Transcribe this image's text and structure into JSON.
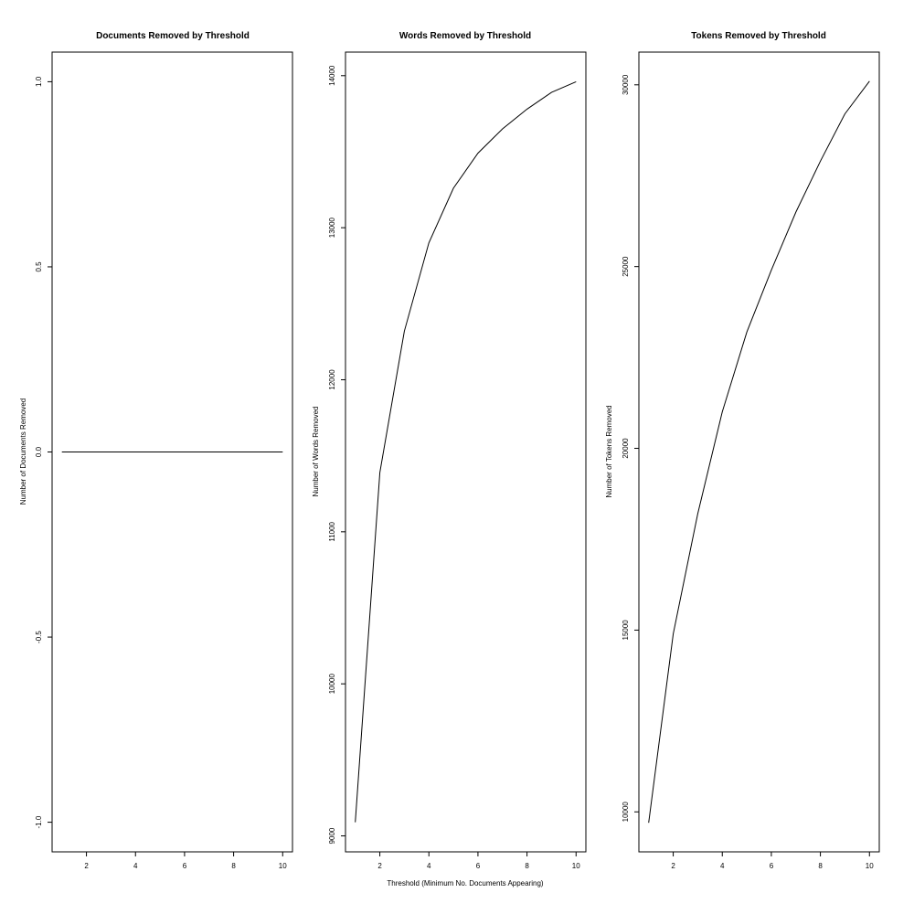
{
  "chart_data": [
    {
      "type": "line",
      "title": "Documents Removed by Threshold",
      "xlabel": "",
      "ylabel": "Number of Documents Removed",
      "x": [
        1,
        2,
        3,
        4,
        5,
        6,
        7,
        8,
        9,
        10
      ],
      "y": [
        0,
        0,
        0,
        0,
        0,
        0,
        0,
        0,
        0,
        0
      ],
      "xlim": [
        0.6,
        10.4
      ],
      "ylim": [
        -1.08,
        1.08
      ],
      "xticks": [
        2,
        4,
        6,
        8,
        10
      ],
      "yticks": [
        -1.0,
        -0.5,
        0.0,
        0.5,
        1.0
      ],
      "ytick_labels": [
        "-1.0",
        "-0.5",
        "0.0",
        "0.5",
        "1.0"
      ],
      "grid": false
    },
    {
      "type": "line",
      "title": "Words Removed by Threshold",
      "xlabel": "Threshold (Minimum No. Documents Appearing)",
      "ylabel": "Number of Words Removed",
      "x": [
        1,
        2,
        3,
        4,
        5,
        6,
        7,
        8,
        9,
        10
      ],
      "y": [
        9090,
        11390,
        12320,
        12900,
        13260,
        13490,
        13650,
        13780,
        13890,
        13960
      ],
      "xlim": [
        0.6,
        10.4
      ],
      "ylim": [
        8895,
        14155
      ],
      "xticks": [
        2,
        4,
        6,
        8,
        10
      ],
      "yticks": [
        9000,
        10000,
        11000,
        12000,
        13000,
        14000
      ],
      "ytick_labels": [
        "9000",
        "10000",
        "11000",
        "12000",
        "13000",
        "14000"
      ],
      "grid": false
    },
    {
      "type": "line",
      "title": "Tokens Removed by Threshold",
      "xlabel": "",
      "ylabel": "Number of Tokens Removed",
      "x": [
        1,
        2,
        3,
        4,
        5,
        6,
        7,
        8,
        9,
        10
      ],
      "y": [
        9700,
        14900,
        18200,
        21000,
        23200,
        24900,
        26500,
        27900,
        29200,
        30100
      ],
      "xlim": [
        0.6,
        10.4
      ],
      "ylim": [
        8900,
        30900
      ],
      "xticks": [
        2,
        4,
        6,
        8,
        10
      ],
      "yticks": [
        10000,
        15000,
        20000,
        25000,
        30000
      ],
      "ytick_labels": [
        "10000",
        "15000",
        "20000",
        "25000",
        "30000"
      ],
      "grid": false
    }
  ]
}
